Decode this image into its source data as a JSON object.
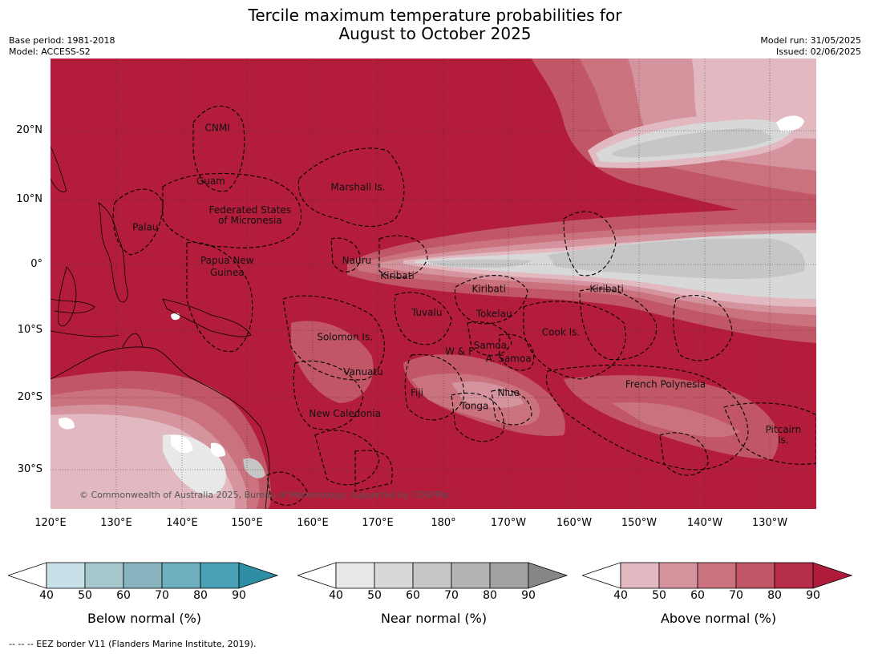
{
  "title_line1": "Tercile maximum temperature probabilities for",
  "title_line2": "August to October 2025",
  "base_period": "Base period: 1981-2018",
  "model": "Model: ACCESS-S2",
  "model_run": "Model run: 31/05/2025",
  "issued": "Issued: 02/06/2025",
  "copyright": "© Commonwealth of Australia 2025, Bureau of Meteorology, supported by COSPPac",
  "footnote": "--  --  -- EEZ border V11 (Flanders Marine Institute, 2019).",
  "lat_labels": [
    "20°N",
    "10°N",
    "0°",
    "10°S",
    "20°S",
    "30°S"
  ],
  "lon_labels": [
    "120°E",
    "130°E",
    "140°E",
    "150°E",
    "160°E",
    "170°E",
    "180°",
    "170°W",
    "160°W",
    "150°W",
    "140°W",
    "130°W"
  ],
  "regions": [
    {
      "name": "CNMI",
      "lon": 145.5,
      "lat": 20.3
    },
    {
      "name": "Guam",
      "lon": 144.5,
      "lat": 12.2
    },
    {
      "name": "Marshall Is.",
      "lon": 167,
      "lat": 11.3
    },
    {
      "name": "Federated States",
      "lon": 150.5,
      "lat": 7.8
    },
    {
      "name": "of Micronesia",
      "lon": 150.5,
      "lat": 6.2
    },
    {
      "name": "Palau",
      "lon": 134.5,
      "lat": 5.2
    },
    {
      "name": "Nauru",
      "lon": 166.8,
      "lat": 0.1
    },
    {
      "name": "Papua New",
      "lon": 147,
      "lat": 0.1
    },
    {
      "name": "Guinea",
      "lon": 147,
      "lat": -1.7
    },
    {
      "name": "Kiribati",
      "lon": 173,
      "lat": -2.2
    },
    {
      "name": "Kiribati",
      "lon": -173,
      "lat": -4.2
    },
    {
      "name": "Kiribati",
      "lon": -155,
      "lat": -4.2
    },
    {
      "name": "Tuvalu",
      "lon": 177.5,
      "lat": -7.8
    },
    {
      "name": "Tokelau",
      "lon": -172.2,
      "lat": -8
    },
    {
      "name": "Cook Is.",
      "lon": -162,
      "lat": -10.8
    },
    {
      "name": "Solomon Is.",
      "lon": 165,
      "lat": -11.5
    },
    {
      "name": "W & F",
      "lon": -177.5,
      "lat": -13.7
    },
    {
      "name": "Samoa",
      "lon": -172.8,
      "lat": -12.8
    },
    {
      "name": "A. Samoa",
      "lon": -170,
      "lat": -14.8
    },
    {
      "name": "Vanuatu",
      "lon": 167.8,
      "lat": -16.8
    },
    {
      "name": "French Polynesia",
      "lon": -146,
      "lat": -18.7
    },
    {
      "name": "Fiji",
      "lon": 176,
      "lat": -20
    },
    {
      "name": "Niue",
      "lon": -170,
      "lat": -20
    },
    {
      "name": "Tonga",
      "lon": -175.2,
      "lat": -22
    },
    {
      "name": "New Caledonia",
      "lon": 165,
      "lat": -23.2
    },
    {
      "name": "Pitcairn",
      "lon": -128,
      "lat": -25.6
    },
    {
      "name": "Is.",
      "lon": -128,
      "lat": -27.2
    }
  ],
  "colorbars": [
    {
      "title": "Below normal (%)",
      "ticks": [
        "40",
        "50",
        "60",
        "70",
        "80",
        "90"
      ],
      "colors": [
        "#ffffff",
        "#c8e1e8",
        "#a6c8cd",
        "#89b5c1",
        "#6eafbf",
        "#48a2b4",
        "#2e8ea3"
      ]
    },
    {
      "title": "Near normal (%)",
      "ticks": [
        "40",
        "50",
        "60",
        "70",
        "80",
        "90"
      ],
      "colors": [
        "#ffffff",
        "#e8e8e8",
        "#d8d8d8",
        "#c6c6c6",
        "#b4b4b4",
        "#a1a1a1",
        "#868686"
      ]
    },
    {
      "title": "Above normal (%)",
      "ticks": [
        "40",
        "50",
        "60",
        "70",
        "80",
        "90"
      ],
      "colors": [
        "#ffffff",
        "#e2b9c0",
        "#d5939d",
        "#cb727f",
        "#c15666",
        "#b52d48",
        "#b01b3c"
      ]
    }
  ]
}
